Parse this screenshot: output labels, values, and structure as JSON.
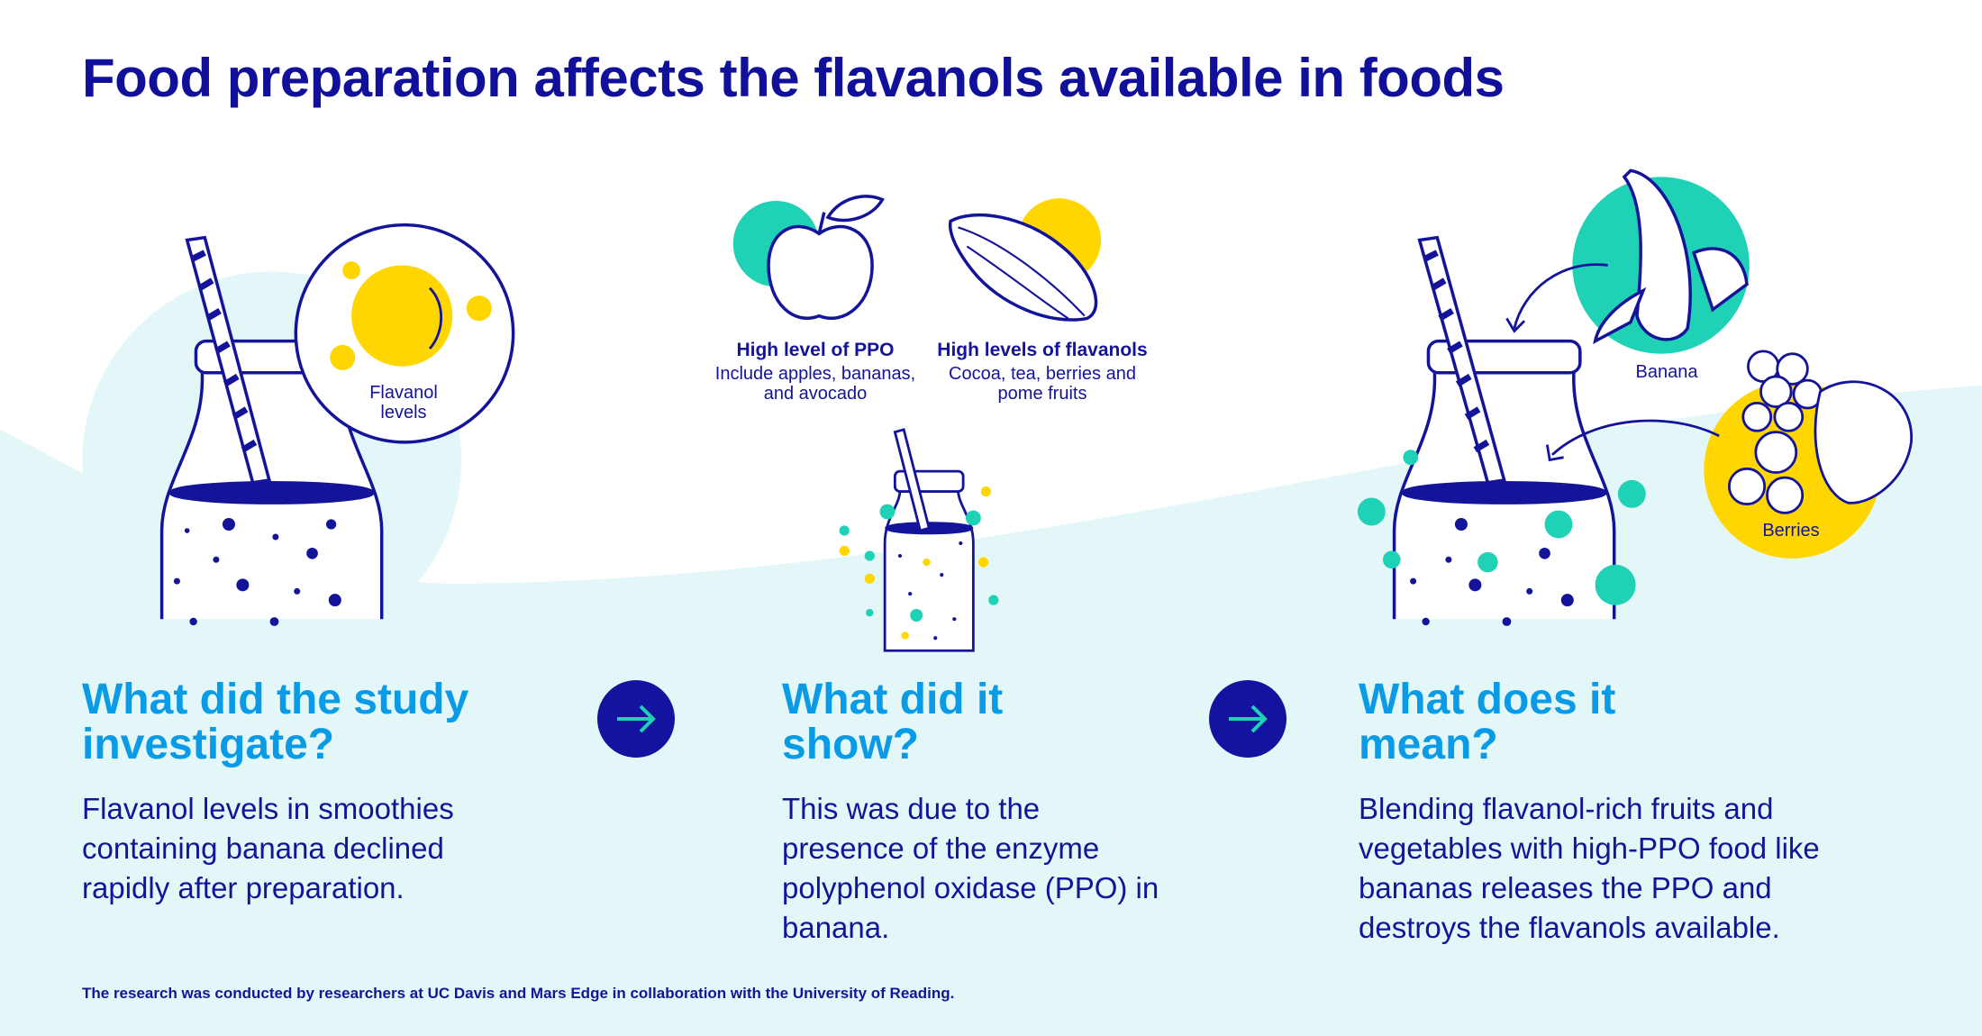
{
  "title": "Food preparation affects the flavanols available in foods",
  "colors": {
    "navy": "#14149a",
    "heading_blue": "#0a9be6",
    "teal": "#1fd1b5",
    "yellow": "#ffd600",
    "background_wave": "#e3f7f8"
  },
  "illustrations": {
    "flavanol_label": "Flavanol levels",
    "ppo": {
      "heading": "High level of PPO",
      "text": "Include apples, bananas, and avocado"
    },
    "flavanols": {
      "heading": "High levels of flavanols",
      "text": "Cocoa, tea, berries and pome fruits"
    },
    "banana_label": "Banana",
    "berries_label": "Berries"
  },
  "sections": [
    {
      "heading": "What did the study investigate?",
      "text": "Flavanol levels in smoothies containing banana declined rapidly after preparation."
    },
    {
      "heading": "What did it show?",
      "text": "This was due to the presence of the enzyme polyphenol oxidase (PPO) in banana."
    },
    {
      "heading": "What does it mean?",
      "text": "Blending flavanol-rich fruits and vegetables with high-PPO food like bananas releases the PPO and destroys the flavanols available."
    }
  ],
  "icons": [
    "arrow-right-icon",
    "arrow-right-icon"
  ],
  "footnote": "The research was conducted by researchers at UC Davis and Mars Edge in collaboration with the University of Reading."
}
